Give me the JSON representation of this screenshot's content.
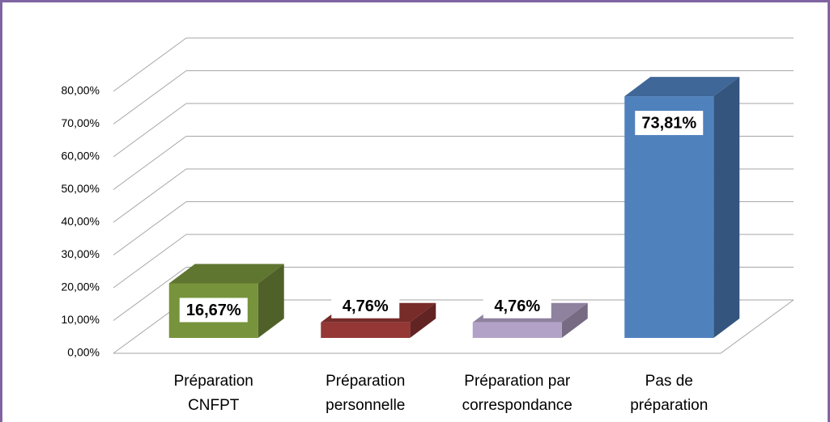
{
  "chart_data": {
    "type": "bar3d",
    "categories": [
      [
        "Préparation",
        "CNFPT"
      ],
      [
        "Préparation",
        "personnelle"
      ],
      [
        "Préparation par",
        "correspondance"
      ],
      [
        "Pas de",
        "préparation"
      ]
    ],
    "values": [
      16.67,
      4.76,
      4.76,
      73.81
    ],
    "value_labels": [
      "16,67%",
      "4,76%",
      "4,76%",
      "73,81%"
    ],
    "colors": [
      "#77933c",
      "#953735",
      "#b3a2c7",
      "#4f81bd"
    ],
    "ylim": [
      0,
      80
    ],
    "yticks": [
      {
        "value": 0,
        "label": "0,00%"
      },
      {
        "value": 10,
        "label": "10,00%"
      },
      {
        "value": 20,
        "label": "20,00%"
      },
      {
        "value": 30,
        "label": "30,00%"
      },
      {
        "value": 40,
        "label": "40,00%"
      },
      {
        "value": 50,
        "label": "50,00%"
      },
      {
        "value": 60,
        "label": "60,00%"
      },
      {
        "value": 70,
        "label": "70,00%"
      },
      {
        "value": 80,
        "label": "80,00%"
      }
    ],
    "grid": true
  }
}
